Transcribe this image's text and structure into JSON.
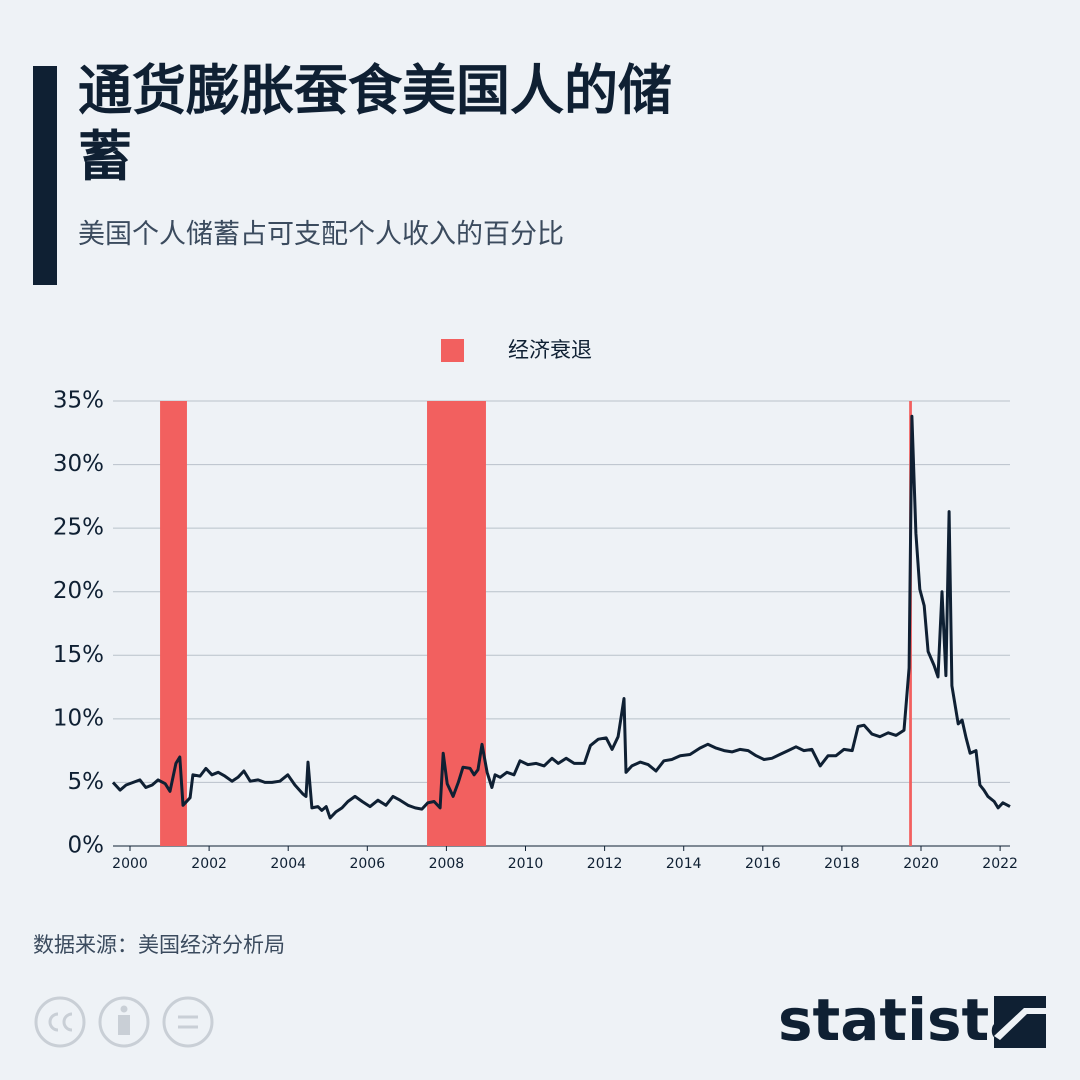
{
  "chart_data": {
    "type": "line",
    "title": "通货膨胀蚕食美国人的储蓄",
    "subtitle": "美国个人储蓄占可支配个人收入的百分比",
    "source": "数据来源：美国经济分析局",
    "logo": "statista",
    "color": "#0f2033",
    "recessions": {
      "name": "经济衰退",
      "color": "#f2605f",
      "periods": [
        [
          2000.76,
          2001.44
        ],
        [
          2007.51,
          2009.0
        ],
        [
          2019.7,
          2019.77
        ]
      ]
    },
    "x": [
      1999.57,
      1999.75,
      1999.9,
      2000.08,
      2000.25,
      2000.4,
      2000.56,
      2000.71,
      2000.89,
      2001.01,
      2001.16,
      2001.26,
      2001.34,
      2001.52,
      2001.59,
      2001.77,
      2001.92,
      2002.07,
      2002.23,
      2002.4,
      2002.58,
      2002.73,
      2002.88,
      2003.04,
      2003.24,
      2003.41,
      2003.59,
      2003.79,
      2003.99,
      2004.17,
      2004.37,
      2004.45,
      2004.5,
      2004.6,
      2004.75,
      2004.85,
      2004.96,
      2005.06,
      2005.21,
      2005.36,
      2005.51,
      2005.69,
      2005.87,
      2006.07,
      2006.27,
      2006.47,
      2006.65,
      2006.83,
      2007.03,
      2007.21,
      2007.38,
      2007.53,
      2007.69,
      2007.84,
      2007.92,
      2008.02,
      2008.17,
      2008.3,
      2008.42,
      2008.6,
      2008.7,
      2008.8,
      2008.9,
      2009.03,
      2009.15,
      2009.23,
      2009.36,
      2009.53,
      2009.71,
      2009.86,
      2010.06,
      2010.27,
      2010.47,
      2010.67,
      2010.83,
      2011.03,
      2011.23,
      2011.49,
      2011.64,
      2011.84,
      2012.04,
      2012.19,
      2012.34,
      2012.49,
      2012.54,
      2012.69,
      2012.9,
      2013.1,
      2013.3,
      2013.5,
      2013.7,
      2013.91,
      2014.16,
      2014.41,
      2014.61,
      2014.82,
      2015.02,
      2015.22,
      2015.42,
      2015.63,
      2015.83,
      2016.03,
      2016.23,
      2016.43,
      2016.64,
      2016.84,
      2017.04,
      2017.24,
      2017.45,
      2017.65,
      2017.85,
      2018.05,
      2018.26,
      2018.41,
      2018.56,
      2018.76,
      2018.96,
      2019.17,
      2019.37,
      2019.57,
      2019.7,
      2019.77,
      2019.87,
      2019.97,
      2020.08,
      2020.18,
      2020.33,
      2020.43,
      2020.53,
      2020.63,
      2020.71,
      2020.78,
      2020.94,
      2021.04,
      2021.14,
      2021.24,
      2021.39,
      2021.49,
      2021.59,
      2021.69,
      2021.85,
      2021.95,
      2022.07,
      2022.25
    ],
    "values": [
      5.0,
      4.4,
      4.8,
      5.0,
      5.2,
      4.6,
      4.8,
      5.2,
      4.9,
      4.3,
      6.5,
      7.0,
      3.2,
      3.8,
      5.6,
      5.5,
      6.1,
      5.6,
      5.8,
      5.5,
      5.1,
      5.4,
      5.9,
      5.1,
      5.2,
      5.0,
      5.0,
      5.1,
      5.6,
      4.8,
      4.1,
      3.9,
      6.6,
      3.0,
      3.1,
      2.8,
      3.1,
      2.2,
      2.7,
      3.0,
      3.5,
      3.9,
      3.5,
      3.1,
      3.6,
      3.2,
      3.9,
      3.6,
      3.2,
      3.0,
      2.9,
      3.4,
      3.5,
      3.0,
      7.3,
      4.9,
      3.9,
      5.0,
      6.2,
      6.1,
      5.6,
      6.0,
      8.0,
      5.8,
      4.6,
      5.6,
      5.4,
      5.8,
      5.6,
      6.7,
      6.4,
      6.5,
      6.3,
      6.9,
      6.5,
      6.9,
      6.5,
      6.5,
      7.9,
      8.4,
      8.5,
      7.6,
      8.6,
      11.6,
      5.8,
      6.3,
      6.6,
      6.4,
      5.9,
      6.7,
      6.8,
      7.1,
      7.2,
      7.7,
      8.0,
      7.7,
      7.5,
      7.4,
      7.6,
      7.5,
      7.1,
      6.8,
      6.9,
      7.2,
      7.5,
      7.8,
      7.5,
      7.6,
      6.3,
      7.1,
      7.1,
      7.6,
      7.5,
      9.4,
      9.5,
      8.8,
      8.6,
      8.9,
      8.7,
      9.1,
      14.0,
      33.8,
      24.6,
      20.2,
      18.9,
      15.3,
      14.2,
      13.3,
      20.0,
      13.4,
      26.3,
      12.6,
      9.6,
      9.9,
      8.5,
      7.3,
      7.5,
      4.8,
      4.4,
      3.9,
      3.5,
      3.0,
      3.4,
      3.1
    ],
    "xlim": [
      1999.57,
      2022.25
    ],
    "xticks": [
      2000,
      2002,
      2004,
      2006,
      2008,
      2010,
      2012,
      2014,
      2016,
      2018,
      2020,
      2022
    ],
    "ylim": [
      0,
      35
    ],
    "yticks": [
      {
        "value": 0,
        "label": "0%"
      },
      {
        "value": 5,
        "label": "5%"
      },
      {
        "value": 10,
        "label": "10%"
      },
      {
        "value": 15,
        "label": "15%"
      },
      {
        "value": 20,
        "label": "20%"
      },
      {
        "value": 25,
        "label": "25%"
      },
      {
        "value": 30,
        "label": "30%"
      },
      {
        "value": 35,
        "label": "35%"
      }
    ],
    "grid": true
  }
}
